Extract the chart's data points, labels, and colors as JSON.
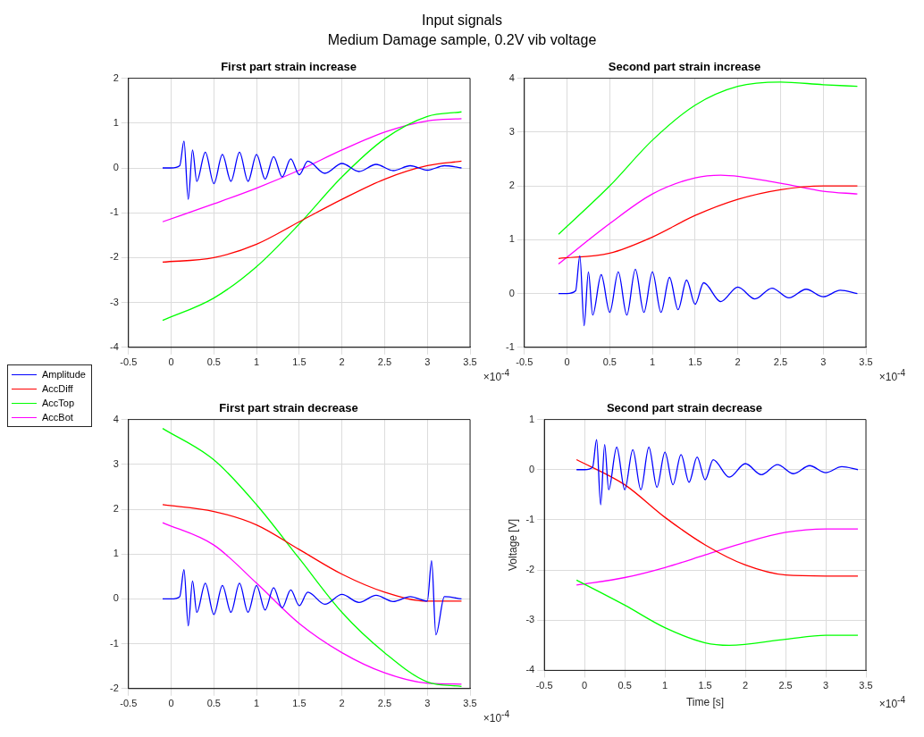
{
  "chart_data": [
    {
      "type": "line",
      "title": "First part strain increase",
      "annotations": [
        "Input signals",
        "Medium Damage sample, 0.2V vib voltage",
        "×10$^{-4}$"
      ],
      "legend": "left",
      "grid": true,
      "xlim": [
        -0.5,
        3.5
      ],
      "xticks": [
        -0.5,
        0,
        0.5,
        1,
        1.5,
        2,
        2.5,
        3,
        3.5
      ],
      "ylim": [
        -4,
        2
      ],
      "yticks": [
        -4,
        -3,
        -2,
        -1,
        0,
        1,
        2
      ],
      "series": [
        {
          "name": "Amplitude",
          "color": "#0000ff",
          "x": [
            -0.1,
            0,
            0.1,
            0.15,
            0.2,
            0.25,
            0.3,
            0.4,
            0.5,
            0.6,
            0.7,
            0.8,
            0.9,
            1.0,
            1.1,
            1.2,
            1.3,
            1.4,
            1.5,
            1.6,
            1.8,
            2.0,
            2.2,
            2.4,
            2.6,
            2.8,
            3.0,
            3.2,
            3.4
          ],
          "values": [
            0,
            0,
            0.05,
            0.6,
            -0.7,
            0.4,
            -0.3,
            0.35,
            -0.35,
            0.3,
            -0.3,
            0.35,
            -0.3,
            0.3,
            -0.25,
            0.25,
            -0.2,
            0.2,
            -0.15,
            0.15,
            -0.12,
            0.1,
            -0.08,
            0.08,
            -0.06,
            0.05,
            -0.05,
            0.05,
            0
          ]
        },
        {
          "name": "AccDiff",
          "color": "#ff0000",
          "x": [
            -0.1,
            0.5,
            1,
            1.5,
            2,
            2.5,
            3,
            3.4
          ],
          "values": [
            -2.1,
            -2.0,
            -1.7,
            -1.2,
            -0.7,
            -0.25,
            0.05,
            0.15
          ]
        },
        {
          "name": "AccTop",
          "color": "#00ff00",
          "x": [
            -0.1,
            0.5,
            1,
            1.5,
            2,
            2.5,
            3,
            3.4
          ],
          "values": [
            -3.4,
            -2.9,
            -2.2,
            -1.25,
            -0.2,
            0.65,
            1.15,
            1.25
          ]
        },
        {
          "name": "AccBot",
          "color": "#ff00ff",
          "x": [
            -0.1,
            0.5,
            1,
            1.5,
            2,
            2.5,
            3,
            3.4
          ],
          "values": [
            -1.2,
            -0.8,
            -0.45,
            -0.05,
            0.4,
            0.8,
            1.05,
            1.1
          ]
        }
      ]
    },
    {
      "type": "line",
      "title": "Second part strain increase",
      "annotations": [
        "×10$^{-4}$"
      ],
      "grid": true,
      "xlim": [
        -0.5,
        3.5
      ],
      "xticks": [
        -0.5,
        0,
        0.5,
        1,
        1.5,
        2,
        2.5,
        3,
        3.5
      ],
      "ylim": [
        -1,
        4
      ],
      "yticks": [
        -1,
        0,
        1,
        2,
        3,
        4
      ],
      "series": [
        {
          "color": "#0000ff",
          "x": [
            -0.1,
            0,
            0.1,
            0.15,
            0.2,
            0.25,
            0.3,
            0.4,
            0.5,
            0.6,
            0.7,
            0.8,
            0.9,
            1.0,
            1.1,
            1.2,
            1.3,
            1.4,
            1.5,
            1.6,
            1.8,
            2.0,
            2.2,
            2.4,
            2.6,
            2.8,
            3.0,
            3.2,
            3.4
          ],
          "values": [
            0,
            0,
            0.05,
            0.7,
            -0.6,
            0.4,
            -0.4,
            0.35,
            -0.35,
            0.4,
            -0.4,
            0.45,
            -0.35,
            0.4,
            -0.35,
            0.3,
            -0.3,
            0.25,
            -0.2,
            0.2,
            -0.15,
            0.12,
            -0.1,
            0.1,
            -0.08,
            0.08,
            -0.06,
            0.06,
            0
          ]
        },
        {
          "color": "#ff0000",
          "x": [
            -0.1,
            0.5,
            1,
            1.5,
            2,
            2.5,
            3,
            3.4
          ],
          "values": [
            0.65,
            0.75,
            1.05,
            1.45,
            1.75,
            1.93,
            2.0,
            2.0
          ]
        },
        {
          "color": "#00ff00",
          "x": [
            -0.1,
            0.5,
            1,
            1.5,
            2,
            2.5,
            3,
            3.4
          ],
          "values": [
            1.1,
            2.0,
            2.85,
            3.5,
            3.85,
            3.93,
            3.88,
            3.85
          ]
        },
        {
          "color": "#ff00ff",
          "x": [
            -0.1,
            0.5,
            1,
            1.5,
            1.8,
            2.5,
            3,
            3.4
          ],
          "values": [
            0.55,
            1.3,
            1.85,
            2.15,
            2.2,
            2.05,
            1.9,
            1.85
          ]
        }
      ]
    },
    {
      "type": "line",
      "title": "First part strain decrease",
      "annotations": [
        "×10$^{-4}$"
      ],
      "grid": true,
      "xlim": [
        -0.5,
        3.5
      ],
      "xticks": [
        -0.5,
        0,
        0.5,
        1,
        1.5,
        2,
        2.5,
        3,
        3.5
      ],
      "ylim": [
        -2,
        4
      ],
      "yticks": [
        -2,
        -1,
        0,
        1,
        2,
        3,
        4
      ],
      "series": [
        {
          "color": "#0000ff",
          "x": [
            -0.1,
            0,
            0.1,
            0.15,
            0.2,
            0.25,
            0.3,
            0.4,
            0.5,
            0.6,
            0.7,
            0.8,
            0.9,
            1.0,
            1.1,
            1.2,
            1.3,
            1.4,
            1.5,
            1.6,
            1.8,
            2.0,
            2.2,
            2.4,
            2.6,
            2.8,
            3.0,
            3.05,
            3.1,
            3.2,
            3.4
          ],
          "values": [
            0,
            0,
            0.05,
            0.65,
            -0.6,
            0.4,
            -0.3,
            0.35,
            -0.35,
            0.3,
            -0.3,
            0.35,
            -0.3,
            0.3,
            -0.25,
            0.25,
            -0.2,
            0.2,
            -0.15,
            0.15,
            -0.12,
            0.1,
            -0.08,
            0.08,
            -0.06,
            0.05,
            -0.05,
            0.85,
            -0.8,
            0.05,
            0
          ]
        },
        {
          "color": "#ff0000",
          "x": [
            -0.1,
            0.5,
            1,
            1.5,
            2,
            2.5,
            3,
            3.4
          ],
          "values": [
            2.1,
            1.95,
            1.65,
            1.1,
            0.55,
            0.15,
            -0.05,
            -0.05
          ]
        },
        {
          "color": "#00ff00",
          "x": [
            -0.1,
            0.5,
            1,
            1.5,
            2,
            2.5,
            3,
            3.4
          ],
          "values": [
            3.8,
            3.1,
            2.1,
            0.9,
            -0.3,
            -1.2,
            -1.85,
            -1.95
          ]
        },
        {
          "color": "#ff00ff",
          "x": [
            -0.1,
            0.5,
            1,
            1.5,
            2,
            2.5,
            3,
            3.4
          ],
          "values": [
            1.7,
            1.2,
            0.35,
            -0.55,
            -1.2,
            -1.65,
            -1.88,
            -1.9
          ]
        }
      ]
    },
    {
      "type": "line",
      "title": "Second part strain decrease",
      "xlabel": "Time [s]",
      "ylabel": "Voltage [V]",
      "annotations": [
        "×10$^{-4}$"
      ],
      "grid": true,
      "xlim": [
        -0.5,
        3.5
      ],
      "xticks": [
        -0.5,
        0,
        0.5,
        1,
        1.5,
        2,
        2.5,
        3,
        3.5
      ],
      "ylim": [
        -4,
        1
      ],
      "yticks": [
        -4,
        -3,
        -2,
        -1,
        0,
        1
      ],
      "series": [
        {
          "color": "#0000ff",
          "x": [
            -0.1,
            0,
            0.1,
            0.15,
            0.2,
            0.25,
            0.3,
            0.4,
            0.5,
            0.6,
            0.7,
            0.8,
            0.9,
            1.0,
            1.1,
            1.2,
            1.3,
            1.4,
            1.5,
            1.6,
            1.8,
            2.0,
            2.2,
            2.4,
            2.6,
            2.8,
            3.0,
            3.2,
            3.4
          ],
          "values": [
            0,
            0,
            0.05,
            0.6,
            -0.7,
            0.5,
            -0.4,
            0.45,
            -0.4,
            0.4,
            -0.4,
            0.45,
            -0.35,
            0.35,
            -0.3,
            0.3,
            -0.25,
            0.25,
            -0.2,
            0.2,
            -0.15,
            0.12,
            -0.1,
            0.1,
            -0.08,
            0.08,
            -0.06,
            0.06,
            0
          ]
        },
        {
          "color": "#ff0000",
          "x": [
            -0.1,
            0.5,
            1,
            1.5,
            2,
            2.5,
            3,
            3.4
          ],
          "values": [
            0.2,
            -0.3,
            -0.95,
            -1.5,
            -1.9,
            -2.1,
            -2.12,
            -2.12
          ]
        },
        {
          "color": "#00ff00",
          "x": [
            -0.1,
            0.5,
            1,
            1.5,
            1.8,
            2.5,
            3,
            3.4
          ],
          "values": [
            -2.2,
            -2.7,
            -3.15,
            -3.45,
            -3.5,
            -3.38,
            -3.3,
            -3.3
          ]
        },
        {
          "color": "#ff00ff",
          "x": [
            -0.1,
            0.5,
            1,
            1.5,
            2,
            2.5,
            3,
            3.4
          ],
          "values": [
            -2.3,
            -2.15,
            -1.95,
            -1.7,
            -1.45,
            -1.25,
            -1.18,
            -1.18
          ]
        }
      ]
    }
  ]
}
